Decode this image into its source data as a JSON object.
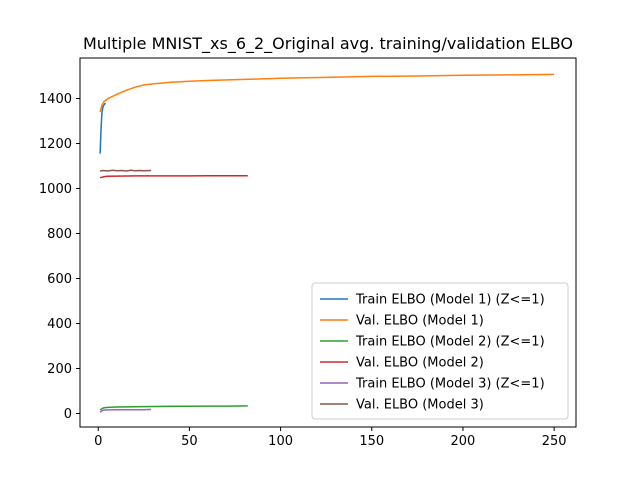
{
  "chart_data": {
    "type": "line",
    "title": "Multiple MNIST_xs_6_2_Original avg. training/validation ELBO",
    "xlabel": "",
    "ylabel": "",
    "xlim": [
      -10,
      262
    ],
    "ylim": [
      -60,
      1580
    ],
    "xticks": [
      0,
      50,
      100,
      150,
      200,
      250
    ],
    "yticks": [
      0,
      200,
      400,
      600,
      800,
      1000,
      1200,
      1400
    ],
    "grid": false,
    "legend_position": "bottom-right",
    "series": [
      {
        "name": "Train ELBO (Model 1) (Z<=1)",
        "color": "#1f77b4",
        "x": [
          1,
          1.5,
          2,
          2.5,
          3,
          4
        ],
        "y": [
          1155,
          1260,
          1335,
          1360,
          1370,
          1380
        ]
      },
      {
        "name": "Val. ELBO (Model 1)",
        "color": "#ff7f0e",
        "x": [
          1,
          2,
          3,
          5,
          10,
          15,
          20,
          25,
          30,
          40,
          50,
          60,
          80,
          100,
          125,
          150,
          175,
          200,
          225,
          250
        ],
        "y": [
          1340,
          1370,
          1385,
          1398,
          1418,
          1435,
          1450,
          1460,
          1465,
          1472,
          1477,
          1480,
          1485,
          1490,
          1494,
          1498,
          1500,
          1503,
          1505,
          1507
        ]
      },
      {
        "name": "Train ELBO (Model 2) (Z<=1)",
        "color": "#2ca02c",
        "x": [
          1,
          2,
          3,
          5,
          10,
          20,
          30,
          40,
          50,
          60,
          70,
          82
        ],
        "y": [
          15,
          22,
          25,
          27,
          29,
          30,
          31,
          32,
          32,
          33,
          33,
          34
        ]
      },
      {
        "name": "Val. ELBO (Model 2)",
        "color": "#d62728",
        "x": [
          1,
          3,
          5,
          10,
          20,
          30,
          40,
          50,
          60,
          70,
          82
        ],
        "y": [
          1048,
          1052,
          1054,
          1055,
          1056,
          1056,
          1056,
          1056,
          1057,
          1057,
          1057
        ]
      },
      {
        "name": "Train ELBO (Model 3) (Z<=1)",
        "color": "#9467bd",
        "x": [
          1,
          2,
          3,
          5,
          10,
          15,
          20,
          25,
          29
        ],
        "y": [
          5,
          12,
          15,
          16,
          17,
          17,
          17,
          17,
          18
        ]
      },
      {
        "name": "Val. ELBO (Model 3)",
        "color": "#8c564b",
        "x": [
          1,
          3,
          5,
          8,
          10,
          13,
          15,
          18,
          20,
          23,
          25,
          29
        ],
        "y": [
          1078,
          1080,
          1078,
          1081,
          1079,
          1080,
          1078,
          1081,
          1079,
          1080,
          1079,
          1080
        ]
      }
    ]
  }
}
